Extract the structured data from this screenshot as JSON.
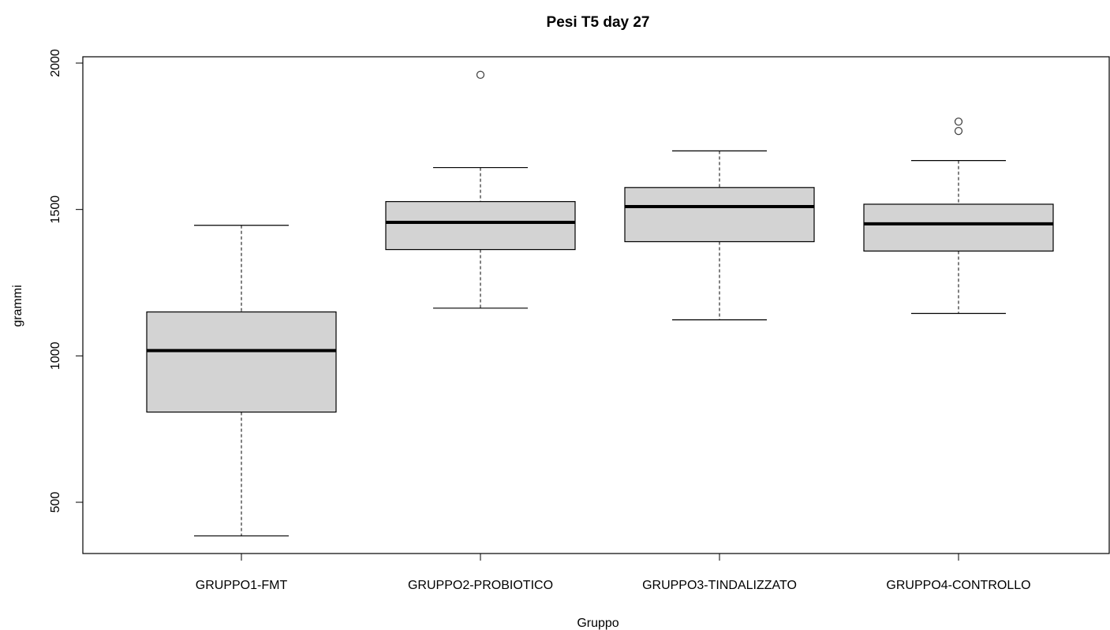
{
  "chart_data": {
    "type": "boxplot",
    "title": "Pesi T5 day 27",
    "xlabel": "Gruppo",
    "ylabel": "grammi",
    "ylim": [
      330,
      2020
    ],
    "yticks": [
      500,
      1000,
      1500,
      2000
    ],
    "fill_color": "#d3d3d3",
    "line_color": "#000000",
    "categories": [
      "GRUPPO1-FMT",
      "GRUPPO2-PROBIOTICO",
      "GRUPPO3-TINDALIZZATO",
      "GRUPPO4-CONTROLLO"
    ],
    "boxes": [
      {
        "category": "GRUPPO1-FMT",
        "whisker_low": 385,
        "q1": 808,
        "median": 1018,
        "q3": 1150,
        "whisker_high": 1446,
        "outliers": []
      },
      {
        "category": "GRUPPO2-PROBIOTICO",
        "whisker_low": 1163,
        "q1": 1363,
        "median": 1456,
        "q3": 1527,
        "whisker_high": 1643,
        "outliers": [
          1960
        ]
      },
      {
        "category": "GRUPPO3-TINDALIZZATO",
        "whisker_low": 1123,
        "q1": 1390,
        "median": 1510,
        "q3": 1575,
        "whisker_high": 1700,
        "outliers": []
      },
      {
        "category": "GRUPPO4-CONTROLLO",
        "whisker_low": 1145,
        "q1": 1358,
        "median": 1451,
        "q3": 1518,
        "whisker_high": 1667,
        "outliers": [
          1768,
          1800
        ]
      }
    ]
  }
}
